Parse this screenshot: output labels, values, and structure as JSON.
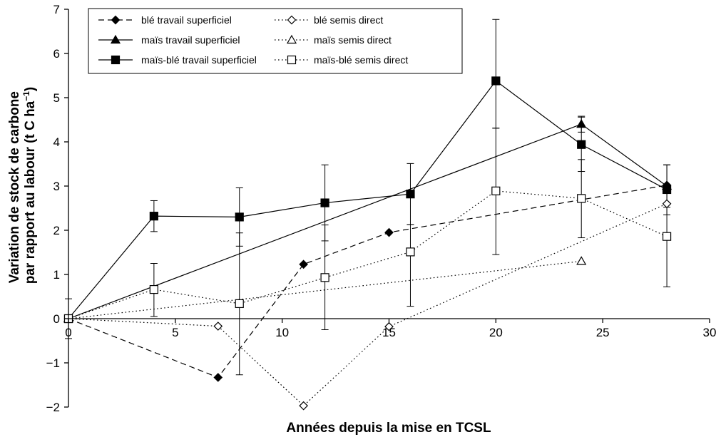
{
  "chart_data": {
    "type": "line",
    "xlabel": "Années depuis la mise en TCSL",
    "ylabel_line1": "Variation de stock de carbone",
    "ylabel_line2": "par rapport au labour (t C ha",
    "ylabel_sup": "−1",
    "ylabel_end": ")",
    "xlim": [
      0,
      30
    ],
    "ylim": [
      -2,
      7
    ],
    "xticks": [
      0,
      5,
      10,
      15,
      20,
      25,
      30
    ],
    "yticks": [
      -2,
      -1,
      0,
      1,
      2,
      3,
      4,
      5,
      6,
      7
    ],
    "xtick_labels": [
      "0",
      "5",
      "10",
      "15",
      "20",
      "25",
      "30"
    ],
    "ytick_labels": [
      "−2",
      "−1",
      "0",
      "1",
      "2",
      "3",
      "4",
      "5",
      "6",
      "7"
    ],
    "grid": false,
    "legend_position": "top-left",
    "series": [
      {
        "name": "blé travail superficiel",
        "marker": "diamond",
        "filled": true,
        "line": "dashed",
        "points": [
          [
            0,
            0
          ],
          [
            7,
            -1.33
          ],
          [
            11,
            1.23
          ],
          [
            15,
            1.95
          ],
          [
            28,
            3.02
          ]
        ],
        "errors": []
      },
      {
        "name": "blé semis direct",
        "marker": "diamond",
        "filled": false,
        "line": "dotted",
        "points": [
          [
            0,
            0
          ],
          [
            7,
            -0.17
          ],
          [
            11,
            -1.97
          ],
          [
            15,
            -0.18
          ],
          [
            28,
            2.6
          ]
        ],
        "errors": []
      },
      {
        "name": "maïs travail superficiel",
        "marker": "triangle",
        "filled": true,
        "line": "solid",
        "points": [
          [
            0,
            0
          ],
          [
            24,
            4.4
          ],
          [
            28,
            3.0
          ]
        ],
        "errors": [
          [
            24,
            4.22,
            4.58
          ],
          [
            28,
            2.52,
            3.48
          ]
        ]
      },
      {
        "name": "maïs semis direct",
        "marker": "triangle",
        "filled": false,
        "line": "dotted",
        "points": [
          [
            0,
            0
          ],
          [
            24,
            1.3
          ]
        ],
        "errors": []
      },
      {
        "name": "maïs-blé travail superficiel",
        "marker": "square",
        "filled": true,
        "line": "solid",
        "points": [
          [
            0,
            0
          ],
          [
            4,
            2.32
          ],
          [
            8,
            2.3
          ],
          [
            12,
            2.62
          ],
          [
            16,
            2.82
          ],
          [
            20,
            5.38
          ],
          [
            24,
            3.94
          ],
          [
            28,
            2.92
          ]
        ],
        "errors": [
          [
            4,
            1.97,
            2.67
          ],
          [
            8,
            1.64,
            2.96
          ],
          [
            12,
            1.76,
            3.48
          ],
          [
            16,
            2.13,
            3.51
          ],
          [
            20,
            4.31,
            6.77
          ],
          [
            24,
            3.33,
            4.56
          ],
          [
            28,
            2.35,
            3.48
          ]
        ]
      },
      {
        "name": "maïs-blé semis direct",
        "marker": "square",
        "filled": false,
        "line": "dotted",
        "points": [
          [
            0,
            0
          ],
          [
            4,
            0.66
          ],
          [
            8,
            0.34
          ],
          [
            12,
            0.93
          ],
          [
            16,
            1.51
          ],
          [
            20,
            2.89
          ],
          [
            24,
            2.72
          ],
          [
            28,
            1.86
          ]
        ],
        "errors": [
          [
            0,
            -0.45,
            0.45
          ],
          [
            4,
            0.05,
            1.25
          ],
          [
            8,
            -1.27,
            1.94
          ],
          [
            12,
            -0.25,
            2.12
          ],
          [
            16,
            0.28,
            2.13
          ],
          [
            20,
            1.45,
            4.31
          ],
          [
            24,
            1.83,
            3.6
          ],
          [
            28,
            0.72,
            3.0
          ]
        ]
      }
    ],
    "colors": {
      "axis": "#000000",
      "series": "#000000",
      "background": "#ffffff"
    }
  }
}
